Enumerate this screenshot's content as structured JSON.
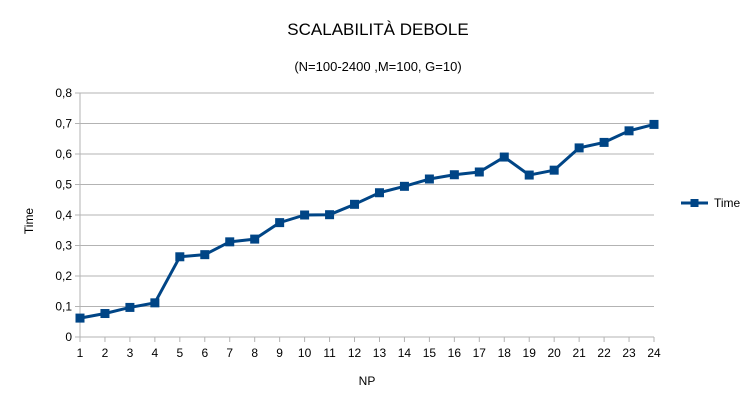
{
  "chart_data": {
    "type": "line",
    "title": "SCALABILITÀ DEBOLE",
    "subtitle": "(N=100-2400 ,M=100, G=10)",
    "xlabel": "NP",
    "ylabel": "Time",
    "x": [
      1,
      2,
      3,
      4,
      5,
      6,
      7,
      8,
      9,
      10,
      11,
      12,
      13,
      14,
      15,
      16,
      17,
      18,
      19,
      20,
      21,
      22,
      23,
      24
    ],
    "ylim": [
      0,
      0.8
    ],
    "yticks": [
      "0",
      "0,1",
      "0,2",
      "0,3",
      "0,4",
      "0,5",
      "0,6",
      "0,7",
      "0,8"
    ],
    "grid": true,
    "legend_position": "right",
    "series": [
      {
        "name": "Time",
        "color": "#004586",
        "values": [
          0.062,
          0.077,
          0.097,
          0.112,
          0.263,
          0.27,
          0.312,
          0.321,
          0.375,
          0.4,
          0.401,
          0.435,
          0.473,
          0.494,
          0.518,
          0.532,
          0.541,
          0.59,
          0.531,
          0.547,
          0.62,
          0.638,
          0.676,
          0.697
        ]
      }
    ]
  }
}
